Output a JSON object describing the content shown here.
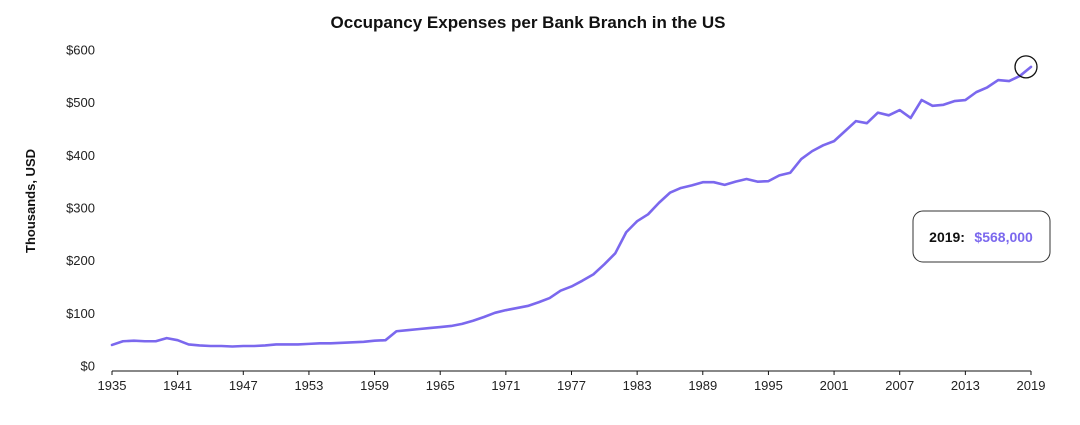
{
  "chart_data": {
    "type": "line",
    "title": "Occupancy Expenses per Bank Branch in the US",
    "xlabel": "",
    "ylabel": "Thousands, USD",
    "xlim": [
      1935,
      2019
    ],
    "ylim": [
      0,
      600
    ],
    "x_ticks": [
      1935,
      1941,
      1947,
      1953,
      1959,
      1965,
      1971,
      1977,
      1983,
      1989,
      1995,
      2001,
      2007,
      2013,
      2019
    ],
    "y_ticks": [
      0,
      100,
      200,
      300,
      400,
      500,
      600
    ],
    "y_tick_labels": [
      "$0",
      "$100",
      "$200",
      "$300",
      "$400",
      "$500",
      "$600"
    ],
    "grid": false,
    "series": [
      {
        "name": "",
        "color": "#7B68EE",
        "x": [
          1935,
          1936,
          1937,
          1938,
          1939,
          1940,
          1941,
          1942,
          1943,
          1944,
          1945,
          1946,
          1947,
          1948,
          1949,
          1950,
          1951,
          1952,
          1953,
          1954,
          1955,
          1956,
          1957,
          1958,
          1959,
          1960,
          1961,
          1962,
          1963,
          1964,
          1965,
          1966,
          1967,
          1968,
          1969,
          1970,
          1971,
          1972,
          1973,
          1974,
          1975,
          1976,
          1977,
          1978,
          1979,
          1980,
          1981,
          1982,
          1983,
          1984,
          1985,
          1986,
          1987,
          1988,
          1989,
          1990,
          1991,
          1992,
          1993,
          1994,
          1995,
          1996,
          1997,
          1998,
          1999,
          2000,
          2001,
          2002,
          2003,
          2004,
          2005,
          2006,
          2007,
          2008,
          2009,
          2010,
          2011,
          2012,
          2013,
          2014,
          2015,
          2016,
          2017,
          2018,
          2019
        ],
        "values": [
          40,
          47,
          48,
          47,
          47,
          53,
          49,
          41,
          39,
          38,
          38,
          37,
          38,
          38,
          39,
          41,
          41,
          41,
          42,
          43,
          43,
          44,
          45,
          46,
          48,
          49,
          66,
          68,
          70,
          72,
          74,
          76,
          80,
          86,
          93,
          101,
          106,
          110,
          114,
          121,
          129,
          143,
          151,
          162,
          174,
          193,
          214,
          254,
          275,
          288,
          310,
          329,
          338,
          343,
          349,
          349,
          344,
          350,
          355,
          350,
          351,
          362,
          367,
          393,
          408,
          419,
          427,
          446,
          465,
          461,
          481,
          476,
          486,
          471,
          505,
          494,
          496,
          503,
          505,
          520,
          529,
          543,
          541,
          551,
          568
        ]
      }
    ],
    "annotation": {
      "year_label": "2019:",
      "value_label": "$568,000",
      "highlight_year": 2019,
      "highlight_value": 568
    }
  }
}
